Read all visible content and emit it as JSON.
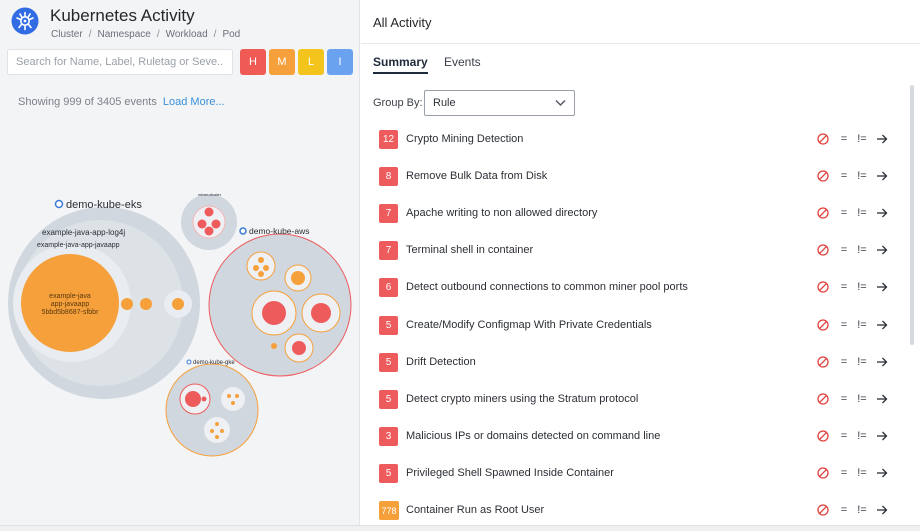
{
  "app": {
    "title": "Kubernetes Activity",
    "logo_icon": "kubernetes-icon",
    "logo_color": "#326ce5"
  },
  "breadcrumb": [
    "Cluster",
    "Namespace",
    "Workload",
    "Pod"
  ],
  "breadcrumb_separator": "/",
  "search": {
    "placeholder": "Search for Name, Label, Ruletag or Seve...",
    "value": ""
  },
  "severity_filters": [
    {
      "label": "H",
      "color": "#ef5a55"
    },
    {
      "label": "M",
      "color": "#f6a03b"
    },
    {
      "label": "L",
      "color": "#f3c51c"
    },
    {
      "label": "I",
      "color": "#6aa2f0"
    }
  ],
  "events_summary": {
    "text": "Showing 999 of 3405 events",
    "load_more": "Load More..."
  },
  "bubble_labels": {
    "eks": "demo-kube-eks",
    "log4j": "example-java-app-log4j",
    "javaapp_workload": "example-java-app-javaapp",
    "pod_line1": "example-java",
    "pod_line2": "app-javaapp",
    "pod_line3": "5bbd5b8687-sfbbr",
    "miner": "miner-cluster",
    "aws": "demo-kube-aws",
    "gke": "demo-kube-gke"
  },
  "colors": {
    "cluster_fill": "#d1d7df",
    "workload_fill": "#e2e6eb",
    "pod_orange": "#f6a03b",
    "pod_red": "#ee5b5d",
    "cluster_dot": "#3a7bd5",
    "badge_red": "#ee5b5d",
    "badge_orange": "#f6a03b",
    "block_icon": "#e0413c"
  },
  "right_panel": {
    "header": "All Activity",
    "tabs": [
      {
        "label": "Summary",
        "active": true
      },
      {
        "label": "Events",
        "active": false
      }
    ],
    "group_by_label": "Group By:",
    "group_by_value": "Rule"
  },
  "rules": [
    {
      "count": "12",
      "severity": "high",
      "name": "Crypto Mining Detection"
    },
    {
      "count": "8",
      "severity": "high",
      "name": "Remove Bulk Data from Disk"
    },
    {
      "count": "7",
      "severity": "high",
      "name": "Apache writing to non allowed directory"
    },
    {
      "count": "7",
      "severity": "high",
      "name": "Terminal shell in container"
    },
    {
      "count": "6",
      "severity": "high",
      "name": "Detect outbound connections to common miner pool ports"
    },
    {
      "count": "5",
      "severity": "high",
      "name": "Create/Modify Configmap With Private Credentials"
    },
    {
      "count": "5",
      "severity": "high",
      "name": "Drift Detection"
    },
    {
      "count": "5",
      "severity": "high",
      "name": "Detect crypto miners using the Stratum protocol"
    },
    {
      "count": "3",
      "severity": "high",
      "name": "Malicious IPs or domains detected on command line"
    },
    {
      "count": "5",
      "severity": "high",
      "name": "Privileged Shell Spawned Inside Container"
    },
    {
      "count": "778",
      "severity": "medium",
      "name": "Container Run as Root User"
    }
  ],
  "row_actions": {
    "equals": "=",
    "not_equals": "!="
  }
}
